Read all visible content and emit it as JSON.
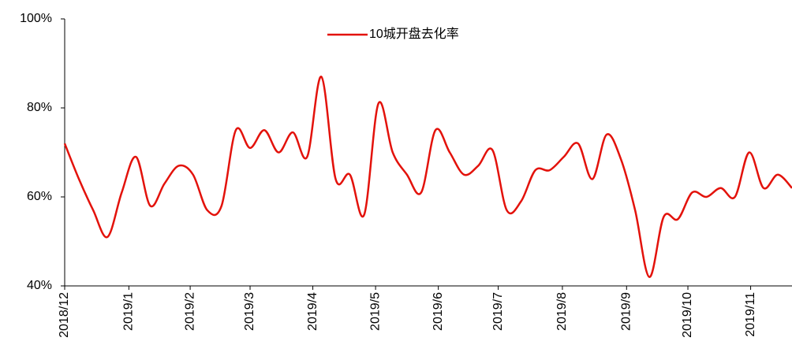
{
  "chart_data": {
    "type": "line",
    "series": [
      {
        "name": "10城开盘去化率",
        "color": "#e3120b",
        "values": [
          72,
          64,
          57,
          51,
          61,
          69,
          58,
          63,
          67,
          65,
          57,
          58,
          75,
          71,
          75,
          70,
          74.5,
          69,
          87,
          64,
          65,
          56,
          81,
          70,
          65,
          61,
          75,
          70,
          65,
          67,
          70.5,
          57,
          59,
          66,
          66,
          69,
          72,
          64,
          74,
          68.5,
          57,
          42,
          55.5,
          55,
          61,
          60,
          62,
          60,
          70,
          62,
          65,
          62
        ]
      }
    ],
    "x": [
      0,
      1,
      2,
      3,
      4,
      5,
      6,
      7,
      8,
      9,
      10,
      11,
      12,
      13,
      14,
      15,
      16,
      17,
      18,
      19,
      20,
      21,
      22,
      23,
      24,
      25,
      26,
      27,
      28,
      29,
      30,
      31,
      32,
      33,
      34,
      35,
      36,
      37,
      38,
      39,
      40,
      41,
      42,
      43,
      44,
      45,
      46,
      47,
      48,
      49,
      50,
      51
    ],
    "xlim": [
      0,
      51
    ],
    "xticks": [
      {
        "value": 0,
        "label": "2018/12"
      },
      {
        "value": 4.5,
        "label": "2019/1"
      },
      {
        "value": 8.8,
        "label": "2019/2"
      },
      {
        "value": 13,
        "label": "2019/3"
      },
      {
        "value": 17.4,
        "label": "2019/4"
      },
      {
        "value": 21.8,
        "label": "2019/5"
      },
      {
        "value": 26.2,
        "label": "2019/6"
      },
      {
        "value": 30.4,
        "label": "2019/7"
      },
      {
        "value": 34.9,
        "label": "2019/8"
      },
      {
        "value": 39.4,
        "label": "2019/9"
      },
      {
        "value": 43.7,
        "label": "2019/10"
      },
      {
        "value": 48.1,
        "label": "2019/11"
      }
    ],
    "ylim": [
      40,
      100
    ],
    "yticks": [
      {
        "value": 40,
        "label": "40%"
      },
      {
        "value": 60,
        "label": "60%"
      },
      {
        "value": 80,
        "label": "80%"
      },
      {
        "value": 100,
        "label": "100%"
      }
    ],
    "legend": "top"
  }
}
